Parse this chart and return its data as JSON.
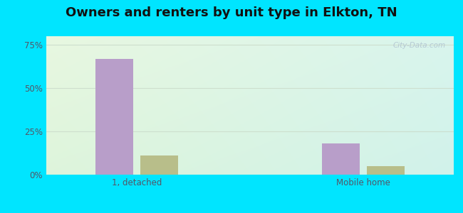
{
  "title": "Owners and renters by unit type in Elkton, TN",
  "categories": [
    "1, detached",
    "Mobile home"
  ],
  "owner_values": [
    67,
    18
  ],
  "renter_values": [
    11,
    5
  ],
  "owner_color": "#b89ec9",
  "renter_color": "#b8be8a",
  "ylim": [
    0,
    80
  ],
  "yticks": [
    0,
    25,
    50,
    75
  ],
  "yticklabels": [
    "0%",
    "25%",
    "50%",
    "75%"
  ],
  "outer_bg": "#00e5ff",
  "title_fontsize": 13,
  "watermark": "City-Data.com",
  "grid_color": "#ddeedc"
}
